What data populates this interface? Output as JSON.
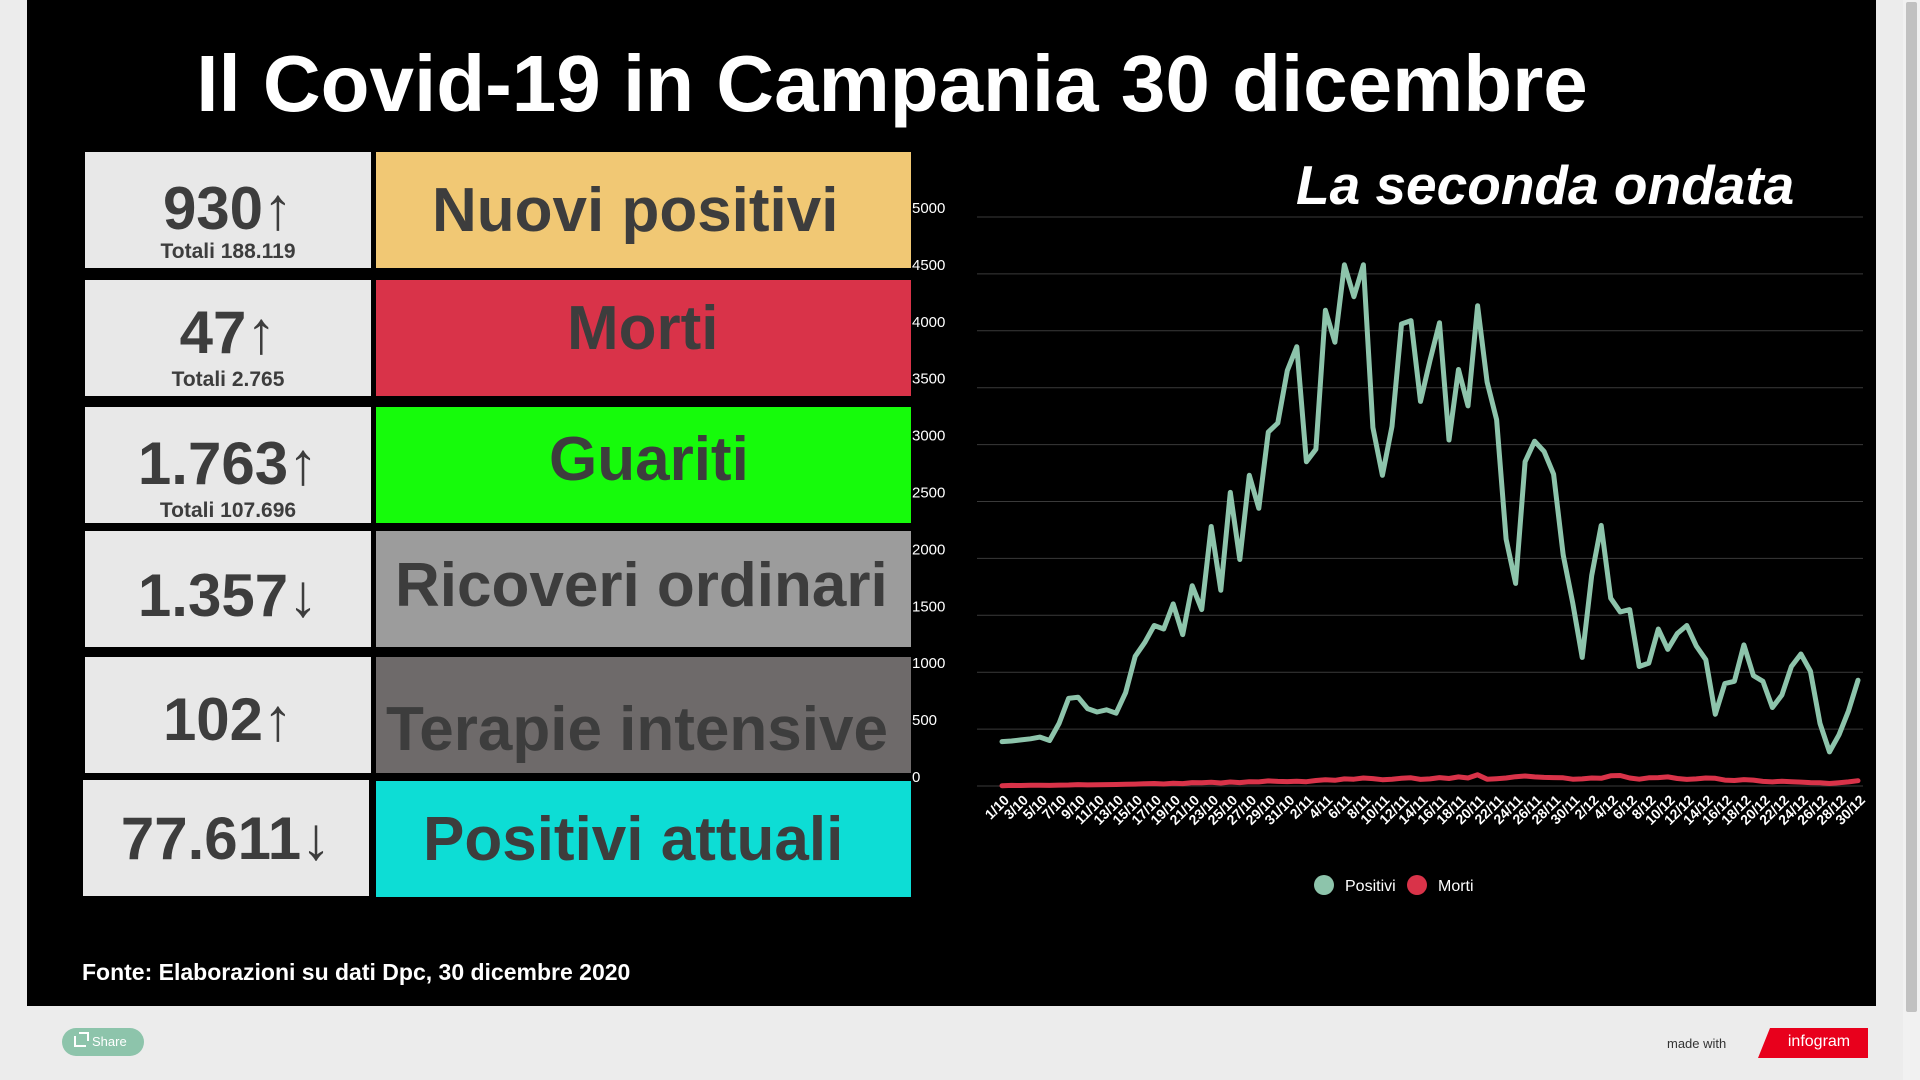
{
  "title": "Il Covid-19 in Campania 30 dicembre",
  "stats": [
    {
      "value": "930↑",
      "total": "Totali 188.119",
      "label": "Nuovi positivi",
      "color": "#f1c874"
    },
    {
      "value": "47↑",
      "total": "Totali 2.765",
      "label": "Morti",
      "color": "#d93349"
    },
    {
      "value": "1.763↑",
      "total": "Totali 107.696",
      "label": "Guariti",
      "color": "#16fb0b"
    },
    {
      "value": "1.357↓",
      "total": "",
      "label": "Ricoveri ordinari",
      "color": "#9c9c9c"
    },
    {
      "value": "102↑",
      "total": "",
      "label": "Terapie intensive",
      "color": "#6e6a6a"
    },
    {
      "value": "77.611↓",
      "total": "",
      "label": "Positivi attuali",
      "color": "#0dddd5"
    }
  ],
  "chart_data": {
    "type": "line",
    "title": "La seconda ondata",
    "x": [
      "1/10",
      "2/10",
      "3/10",
      "4/10",
      "5/10",
      "6/10",
      "7/10",
      "8/10",
      "9/10",
      "10/10",
      "11/10",
      "12/10",
      "13/10",
      "14/10",
      "15/10",
      "16/10",
      "17/10",
      "18/10",
      "19/10",
      "20/10",
      "21/10",
      "22/10",
      "23/10",
      "24/10",
      "25/10",
      "26/10",
      "27/10",
      "28/10",
      "29/10",
      "30/10",
      "31/10",
      "1/11",
      "2/11",
      "3/11",
      "4/11",
      "5/11",
      "6/11",
      "7/11",
      "8/11",
      "9/11",
      "10/11",
      "11/11",
      "12/11",
      "13/11",
      "14/11",
      "15/11",
      "16/11",
      "17/11",
      "18/11",
      "19/11",
      "20/11",
      "21/11",
      "22/11",
      "23/11",
      "24/11",
      "25/11",
      "26/11",
      "27/11",
      "28/11",
      "29/11",
      "30/11",
      "1/12",
      "2/12",
      "3/12",
      "4/12",
      "5/12",
      "6/12",
      "7/12",
      "8/12",
      "9/12",
      "10/12",
      "11/12",
      "12/12",
      "13/12",
      "14/12",
      "15/12",
      "16/12",
      "17/12",
      "18/12",
      "19/12",
      "20/12",
      "21/12",
      "22/12",
      "23/12",
      "24/12",
      "25/12",
      "26/12",
      "27/12",
      "28/12",
      "29/12",
      "30/12"
    ],
    "tick_labels": [
      "1/10",
      "3/10",
      "5/10",
      "7/10",
      "9/10",
      "11/10",
      "13/10",
      "15/10",
      "17/10",
      "19/10",
      "21/10",
      "23/10",
      "25/10",
      "27/10",
      "29/10",
      "31/10",
      "2/11",
      "4/11",
      "6/11",
      "8/11",
      "10/11",
      "12/11",
      "14/11",
      "16/11",
      "18/11",
      "20/11",
      "22/11",
      "24/11",
      "26/11",
      "28/11",
      "30/11",
      "2/12",
      "4/12",
      "6/12",
      "8/12",
      "10/12",
      "12/12",
      "14/12",
      "16/12",
      "18/12",
      "20/12",
      "22/12",
      "24/12",
      "26/12",
      "28/12",
      "30/12"
    ],
    "series": [
      {
        "name": "Positivi",
        "color": "#8dc4ab",
        "values": [
          390,
          395,
          405,
          415,
          430,
          400,
          550,
          770,
          780,
          680,
          650,
          670,
          640,
          820,
          1140,
          1260,
          1410,
          1380,
          1600,
          1330,
          1760,
          1550,
          2280,
          1720,
          2580,
          1990,
          2730,
          2440,
          3110,
          3190,
          3650,
          3860,
          2850,
          2960,
          4180,
          3900,
          4580,
          4300,
          4580,
          3150,
          2730,
          3160,
          4060,
          4090,
          3380,
          3740,
          4070,
          3040,
          3660,
          3340,
          4220,
          3550,
          3220,
          2170,
          1780,
          2850,
          3030,
          2940,
          2740,
          2030,
          1610,
          1130,
          1850,
          2290,
          1650,
          1530,
          1550,
          1050,
          1080,
          1380,
          1200,
          1340,
          1410,
          1230,
          1110,
          630,
          900,
          920,
          1240,
          970,
          920,
          690,
          800,
          1050,
          1160,
          1010,
          550,
          300,
          450,
          660,
          930
        ]
      },
      {
        "name": "Morti",
        "color": "#d93349",
        "values": [
          3,
          5,
          4,
          6,
          6,
          5,
          8,
          9,
          12,
          10,
          11,
          12,
          13,
          15,
          17,
          20,
          22,
          18,
          25,
          21,
          30,
          28,
          33,
          26,
          35,
          30,
          38,
          36,
          45,
          40,
          39,
          42,
          38,
          48,
          55,
          50,
          62,
          60,
          70,
          65,
          55,
          60,
          68,
          72,
          58,
          62,
          74,
          66,
          80,
          70,
          98,
          60,
          64,
          70,
          82,
          88,
          80,
          76,
          74,
          72,
          60,
          62,
          70,
          68,
          90,
          92,
          70,
          60,
          72,
          74,
          80,
          66,
          58,
          62,
          70,
          68,
          52,
          48,
          56,
          52,
          40,
          36,
          42,
          38,
          34,
          30,
          28,
          22,
          28,
          36,
          47
        ]
      }
    ],
    "ylim": [
      0,
      5000
    ],
    "yticks": [
      0,
      500,
      1000,
      1500,
      2000,
      2500,
      3000,
      3500,
      4000,
      4500,
      5000
    ],
    "grid": true,
    "legend": "bottom"
  },
  "source": "Fonte: Elaborazioni su dati Dpc, 30 dicembre 2020",
  "footer": {
    "share": "Share",
    "made_with": "made with",
    "brand": "infogram"
  }
}
